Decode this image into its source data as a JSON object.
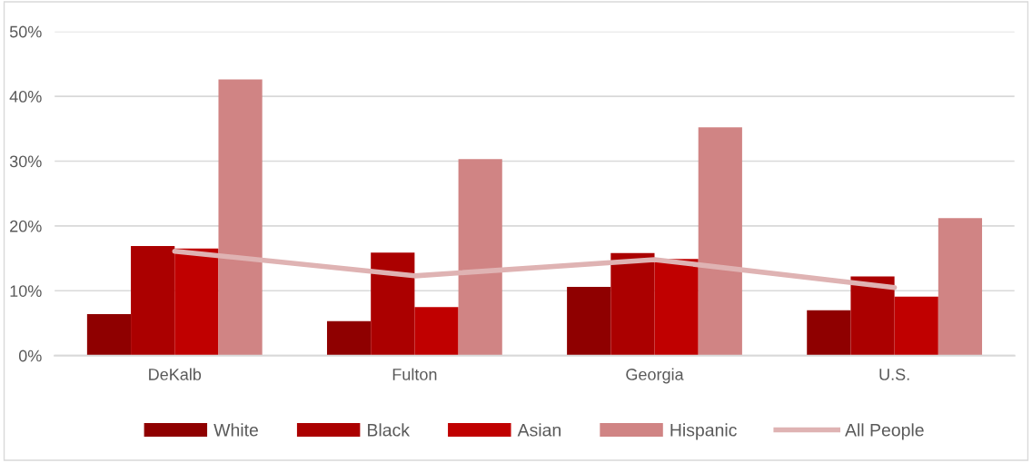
{
  "chart_data": {
    "type": "bar",
    "categories": [
      "DeKalb",
      "Fulton",
      "Georgia",
      "U.S."
    ],
    "series": [
      {
        "name": "White",
        "color": "#8f0000",
        "values": [
          6.4,
          5.3,
          10.6,
          7.0
        ]
      },
      {
        "name": "Black",
        "color": "#ab0000",
        "values": [
          16.9,
          15.9,
          15.8,
          12.2
        ]
      },
      {
        "name": "Asian",
        "color": "#c00000",
        "values": [
          16.5,
          7.5,
          14.9,
          9.1
        ]
      },
      {
        "name": "Hispanic",
        "color": "#d08484",
        "values": [
          42.6,
          30.3,
          35.2,
          21.2
        ]
      },
      {
        "name": "All People",
        "color": "#dfb3b3",
        "type": "line",
        "marker": "none",
        "line_style": "solid",
        "values": [
          16.1,
          12.3,
          14.8,
          10.5
        ]
      }
    ],
    "ylim": [
      0,
      50
    ],
    "yticks": [
      {
        "value": 0,
        "label": "0%"
      },
      {
        "value": 10,
        "label": "10%"
      },
      {
        "value": 20,
        "label": "20%"
      },
      {
        "value": 30,
        "label": "30%"
      },
      {
        "value": 40,
        "label": "40%"
      },
      {
        "value": 50,
        "label": "50%"
      }
    ],
    "grid": "y",
    "legend": "bottom"
  }
}
